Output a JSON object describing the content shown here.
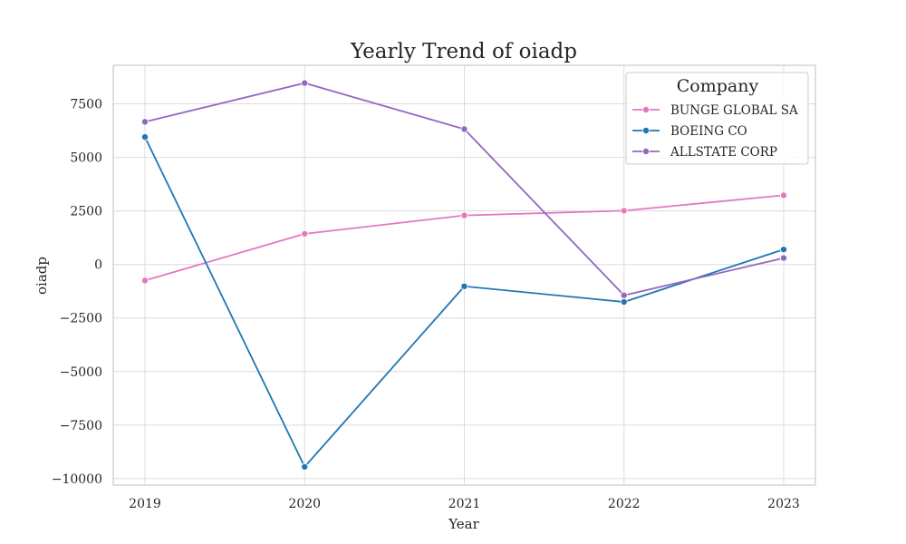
{
  "chart_data": {
    "type": "line",
    "title": "Yearly Trend of oiadp",
    "xlabel": "Year",
    "ylabel": "oiadp",
    "x": [
      "2019",
      "2020",
      "2021",
      "2022",
      "2023"
    ],
    "ylim": [
      -10300,
      9300
    ],
    "yticks": [
      -10000,
      -7500,
      -5000,
      -2500,
      0,
      2500,
      5000,
      7500
    ],
    "ytick_labels": [
      "−10000",
      "−7500",
      "−5000",
      "−2500",
      "0",
      "2500",
      "5000",
      "7500"
    ],
    "grid": true,
    "legend": {
      "title": "Company",
      "placement": "top-right"
    },
    "series": [
      {
        "name": "BUNGE GLOBAL SA",
        "color": "#e377c2",
        "values": [
          -750,
          1430,
          2290,
          2510,
          3230
        ]
      },
      {
        "name": "BOEING CO",
        "color": "#1f77b4",
        "values": [
          5950,
          -9450,
          -1020,
          -1750,
          700
        ]
      },
      {
        "name": "ALLSTATE CORP",
        "color": "#9467bd",
        "values": [
          6660,
          8470,
          6320,
          -1440,
          300
        ]
      }
    ]
  }
}
